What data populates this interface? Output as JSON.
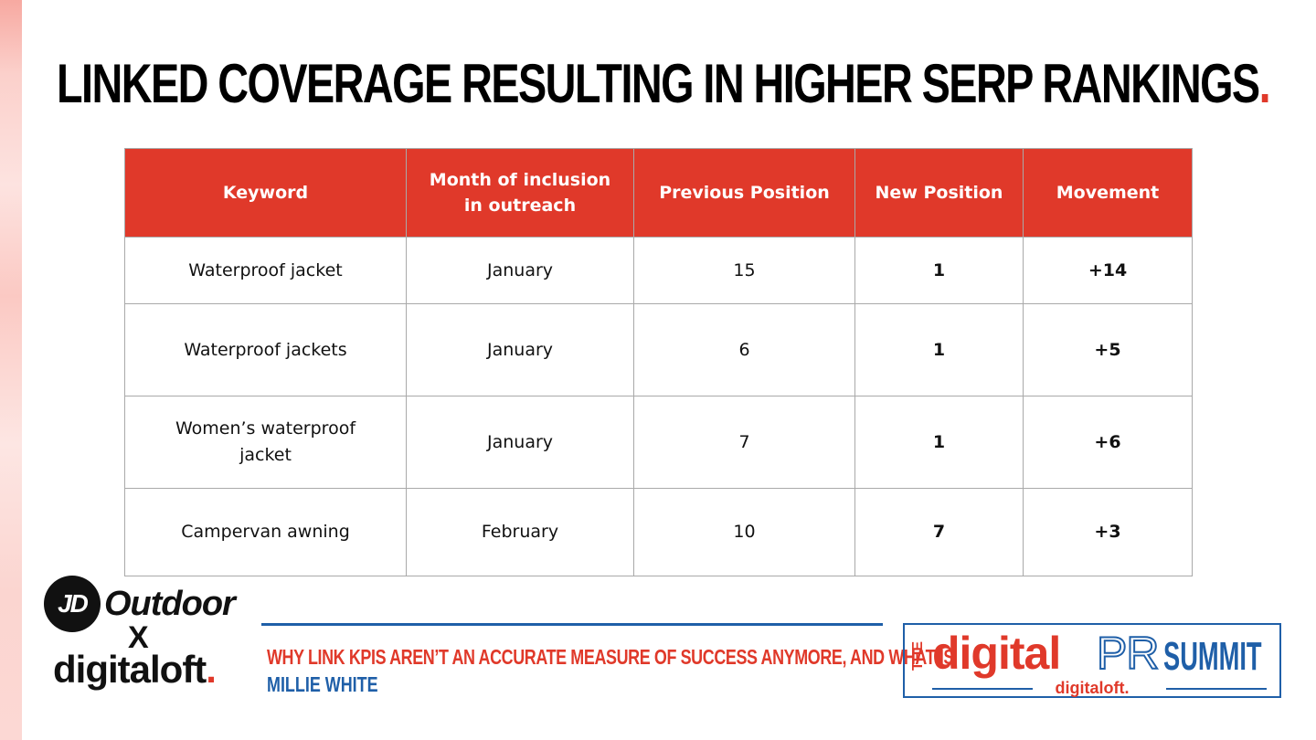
{
  "slide": {
    "title": "LINKED COVERAGE RESULTING IN HIGHER SERP RANKINGS",
    "title_dot": ".",
    "accent_color": "#e0392a",
    "positive_color": "#74b043",
    "brand_blue": "#1f5fa8"
  },
  "table": {
    "headers": [
      "Keyword",
      "Month of inclusion in outreach",
      "Previous Position",
      "New Position",
      "Movement"
    ],
    "rows": [
      {
        "keyword": "Waterproof jacket",
        "month": "January",
        "previous": "15",
        "new": "1",
        "movement": "+14"
      },
      {
        "keyword": "Waterproof jackets",
        "month": "January",
        "previous": "6",
        "new": "1",
        "movement": "+5"
      },
      {
        "keyword": "Women’s waterproof jacket",
        "month": "January",
        "previous": "7",
        "new": "1",
        "movement": "+6"
      },
      {
        "keyword": "Campervan awning",
        "month": "February",
        "previous": "10",
        "new": "7",
        "movement": "+3"
      }
    ]
  },
  "logos": {
    "jd_mark": "JD",
    "jd_word": "Outdoor",
    "x_separator": "X",
    "digitaloft_word": "digitaloft",
    "digitaloft_dot": "."
  },
  "footer": {
    "talk_title": "WHY LINK KPIS AREN’T AN ACCURATE MEASURE OF SUCCESS ANYMORE, AND WHAT IS",
    "speaker": "MILLIE WHITE"
  },
  "summit_logo": {
    "the": "THE",
    "digital": "digital",
    "pr": "PR",
    "summit": "SUMMIT",
    "byline": "digitaloft."
  }
}
